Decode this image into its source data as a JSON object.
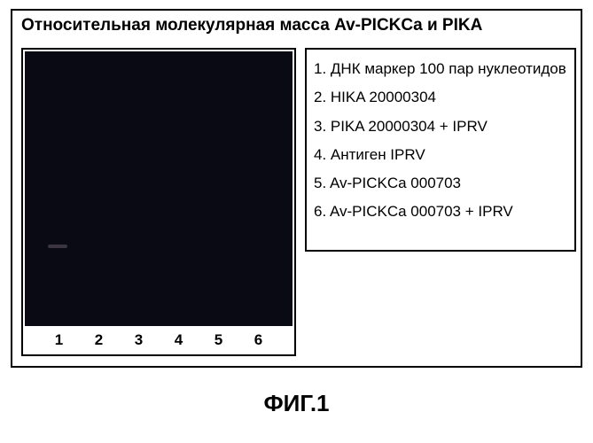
{
  "title": "Относительная молекулярная масса Av-PICKCa и  PIKA",
  "gel": {
    "background_color": "#0a0a14",
    "frame_color": "#000000",
    "lanes": [
      "1",
      "2",
      "3",
      "4",
      "5",
      "6"
    ]
  },
  "legend": {
    "items": [
      "1. ДНК маркер 100 пар нуклеотидов",
      "2. HIKA 20000304",
      "3. PIKA 20000304 + IPRV",
      "4. Антиген IPRV",
      "5. Av-PICKCa 000703",
      "6. Av-PICKCa 000703 + IPRV"
    ]
  },
  "figure_label": "ФИГ.1"
}
